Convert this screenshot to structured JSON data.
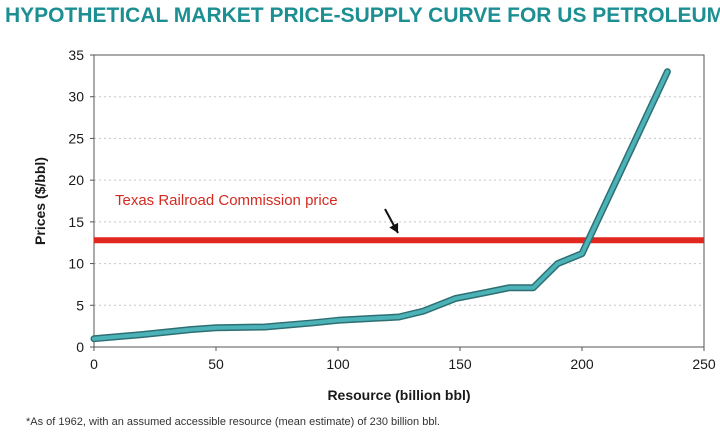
{
  "title": "Hypothetical market price-supply curve for US petroleum*",
  "footnote": "*As of 1962, with an assumed accessible resource (mean estimate) of 230 billion bbl.",
  "colors": {
    "title": "#1c8f93",
    "curve": "#4bb3b8",
    "curve_outline": "#2e6f73",
    "price_line": "#e0281e",
    "grid": "#c8c8c8",
    "annotation": "#d42a20"
  },
  "chart_data": {
    "type": "line",
    "title": "Hypothetical market price-supply curve for US petroleum*",
    "xlabel": "Resource (billion bbl)",
    "ylabel": "Prices ($/bbl)",
    "xlim": [
      0,
      250
    ],
    "ylim": [
      0,
      35
    ],
    "xticks": [
      "0",
      "50",
      "100",
      "150",
      "200",
      "250"
    ],
    "yticks": [
      "0",
      "5",
      "10",
      "15",
      "20",
      "25",
      "30",
      "35"
    ],
    "grid": "horizontal dotted",
    "series": [
      {
        "x": [
          0,
          20,
          40,
          50,
          70,
          90,
          100,
          125,
          135,
          148,
          160,
          170,
          180,
          190,
          200,
          235
        ],
        "values": [
          1.0,
          1.5,
          2.1,
          2.3,
          2.4,
          2.9,
          3.2,
          3.6,
          4.3,
          5.8,
          6.5,
          7.1,
          7.1,
          10.0,
          11.2,
          33.0
        ]
      }
    ],
    "reference_line": {
      "y": 12.8,
      "label": "Texas Railroad Commission price"
    }
  }
}
